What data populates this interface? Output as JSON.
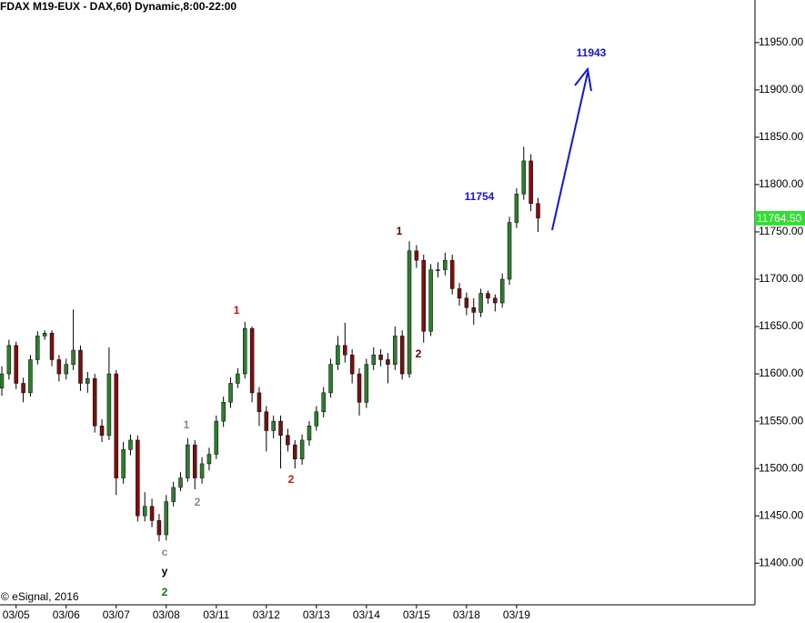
{
  "chart_data": {
    "type": "candlestick",
    "title": "(FDAX M19-EUX - DAX,60) Dynamic,8:00-22:00",
    "credit": "© eSignal, 2016",
    "categories": [
      null,
      null,
      "03/05",
      null,
      null,
      null,
      null,
      null,
      null,
      "03/06",
      null,
      null,
      null,
      null,
      null,
      null,
      "03/07",
      null,
      null,
      null,
      null,
      null,
      null,
      "03/08",
      null,
      null,
      null,
      null,
      null,
      null,
      "03/11",
      null,
      null,
      null,
      null,
      null,
      null,
      "03/12",
      null,
      null,
      null,
      null,
      null,
      null,
      "03/13",
      null,
      null,
      null,
      null,
      null,
      null,
      "03/14",
      null,
      null,
      null,
      null,
      null,
      null,
      "03/15",
      null,
      null,
      null,
      null,
      null,
      null,
      "03/18",
      null,
      null,
      null,
      null,
      null,
      null,
      "03/19",
      null,
      null,
      null
    ],
    "open": [
      11585,
      11600,
      11630,
      11590,
      11580,
      11615,
      11640,
      11643,
      11615,
      11600,
      11610,
      11625,
      11590,
      11595,
      11545,
      11535,
      11600,
      11490,
      11520,
      11530,
      11450,
      11460,
      11445,
      11430,
      11465,
      11480,
      11490,
      11525,
      11490,
      11505,
      11515,
      11550,
      11570,
      11590,
      11600,
      11648,
      11580,
      11560,
      11540,
      11550,
      11535,
      11525,
      11510,
      11530,
      11545,
      11560,
      11580,
      11610,
      11630,
      11620,
      11600,
      11570,
      11610,
      11620,
      11615,
      11610,
      11640,
      11600,
      11730,
      11720,
      11645,
      11710,
      11710,
      11720,
      11690,
      11680,
      11670,
      11665,
      11685,
      11680,
      11675,
      11700,
      11760,
      11790,
      11825,
      11780
    ],
    "high": [
      11608,
      11636,
      11634,
      11596,
      11620,
      11645,
      11646,
      11646,
      11620,
      11616,
      11668,
      11630,
      11602,
      11600,
      11552,
      11628,
      11604,
      11528,
      11536,
      11535,
      11475,
      11468,
      11452,
      11472,
      11486,
      11496,
      11532,
      11530,
      11512,
      11522,
      11556,
      11576,
      11596,
      11606,
      11655,
      11650,
      11586,
      11566,
      11556,
      11556,
      11542,
      11530,
      11536,
      11550,
      11566,
      11586,
      11616,
      11640,
      11654,
      11626,
      11606,
      11616,
      11628,
      11626,
      11622,
      11650,
      11646,
      11740,
      11736,
      11726,
      11716,
      11718,
      11728,
      11726,
      11696,
      11686,
      11680,
      11690,
      11688,
      11684,
      11706,
      11766,
      11796,
      11840,
      11832,
      11786
    ],
    "low": [
      11577,
      11594,
      11584,
      11570,
      11576,
      11610,
      11636,
      11608,
      11592,
      11594,
      11604,
      11582,
      11580,
      11538,
      11528,
      11530,
      11472,
      11484,
      11514,
      11444,
      11444,
      11438,
      11423,
      11424,
      11460,
      11476,
      11486,
      11478,
      11484,
      11498,
      11510,
      11544,
      11564,
      11585,
      11595,
      11570,
      11545,
      11518,
      11532,
      11500,
      11518,
      11500,
      11504,
      11524,
      11540,
      11554,
      11575,
      11604,
      11612,
      11590,
      11556,
      11564,
      11604,
      11608,
      11590,
      11604,
      11594,
      11596,
      11712,
      11633,
      11640,
      11702,
      11704,
      11684,
      11672,
      11662,
      11652,
      11660,
      11674,
      11666,
      11670,
      11694,
      11754,
      11784,
      11772,
      11750
    ],
    "close": [
      11600,
      11630,
      11590,
      11580,
      11615,
      11640,
      11643,
      11615,
      11600,
      11610,
      11625,
      11590,
      11595,
      11545,
      11535,
      11600,
      11490,
      11520,
      11530,
      11450,
      11460,
      11445,
      11430,
      11465,
      11480,
      11490,
      11525,
      11490,
      11505,
      11515,
      11550,
      11570,
      11590,
      11600,
      11648,
      11580,
      11560,
      11540,
      11550,
      11535,
      11525,
      11510,
      11530,
      11545,
      11560,
      11580,
      11610,
      11630,
      11620,
      11600,
      11570,
      11610,
      11620,
      11615,
      11610,
      11640,
      11600,
      11730,
      11720,
      11645,
      11710,
      11710,
      11720,
      11690,
      11680,
      11670,
      11665,
      11685,
      11680,
      11675,
      11700,
      11760,
      11790,
      11825,
      11780,
      11764.5
    ],
    "up_color": "#2f7d2f",
    "down_color": "#7a1010",
    "ylim": [
      11356,
      11995
    ],
    "yticks": [
      {
        "value": 11400,
        "label": "11400.00"
      },
      {
        "value": 11450,
        "label": "11450.00"
      },
      {
        "value": 11500,
        "label": "11500.00"
      },
      {
        "value": 11550,
        "label": "11550.00"
      },
      {
        "value": 11600,
        "label": "11600.00"
      },
      {
        "value": 11650,
        "label": "11650.00"
      },
      {
        "value": 11700,
        "label": "11700.00"
      },
      {
        "value": 11750,
        "label": "11750.00"
      },
      {
        "value": 11800,
        "label": "11800.00"
      },
      {
        "value": 11850,
        "label": "11850.00"
      },
      {
        "value": 11900,
        "label": "11900.00"
      },
      {
        "value": 11950,
        "label": "11950.00"
      }
    ],
    "last_price": {
      "value": 11764.5,
      "label": "11764.50",
      "color": "#33dd33"
    },
    "annotations": [
      {
        "text": "1",
        "color": "#e01010"
      },
      {
        "text": "2",
        "color": "#e01010"
      },
      {
        "text": "1",
        "color": "#888888"
      },
      {
        "text": "2",
        "color": "#888888"
      },
      {
        "text": "c",
        "color": "#888888"
      },
      {
        "text": "y",
        "color": "#000000"
      },
      {
        "text": "2",
        "color": "#0a7a0a"
      },
      {
        "text": "1",
        "color": "#6b0000"
      },
      {
        "text": "2",
        "color": "#6b0000"
      },
      {
        "text": "11754",
        "color": "#1414e0"
      },
      {
        "text": "11943",
        "color": "#1414e0"
      }
    ]
  }
}
